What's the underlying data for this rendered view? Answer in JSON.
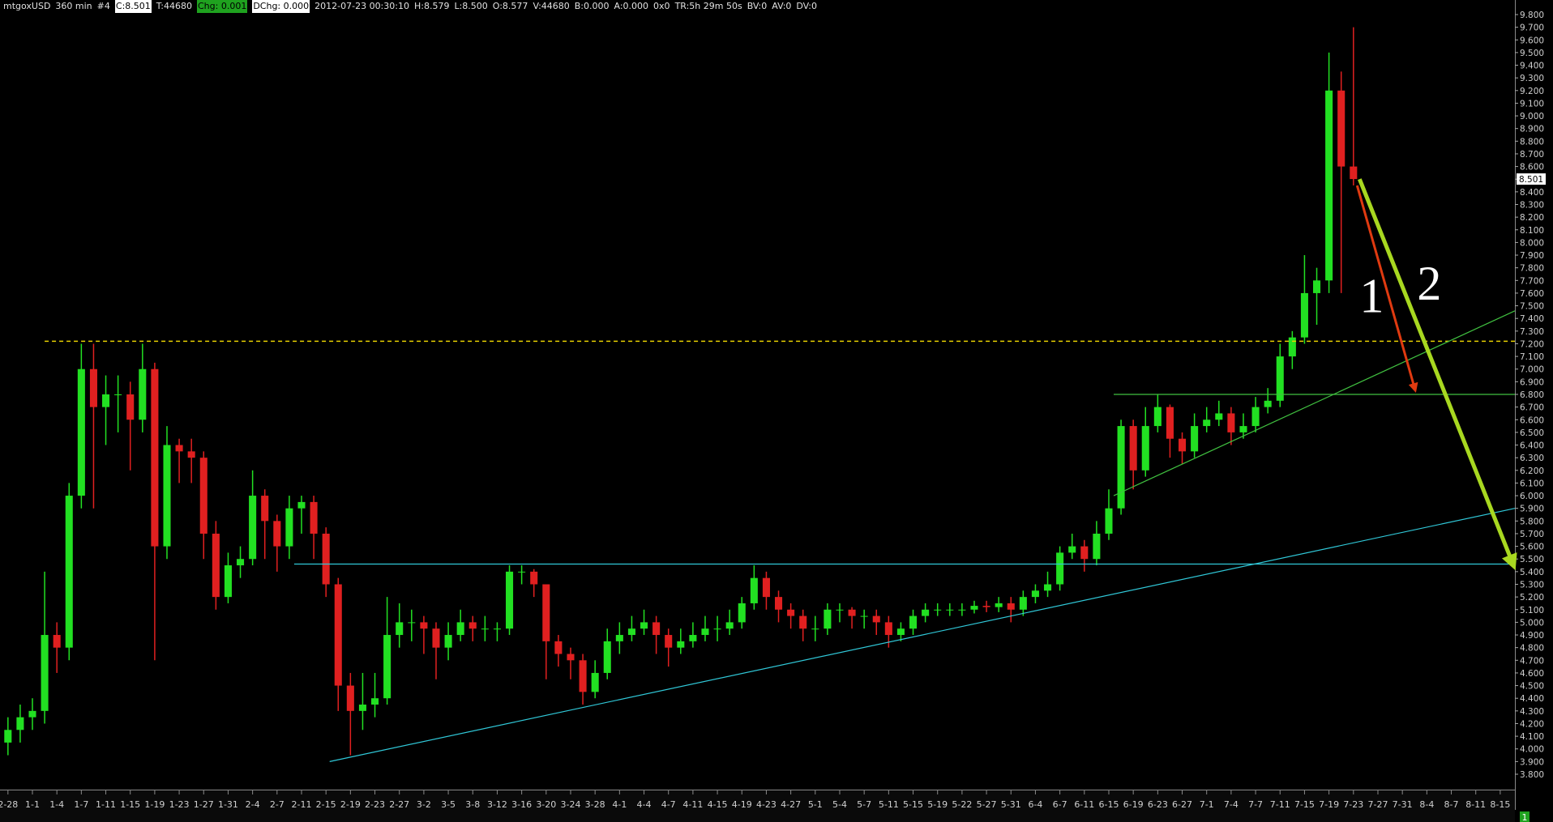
{
  "header": [
    "mtgoxUSD",
    "360 min",
    "#4",
    "C:8.501",
    "T:44680",
    "Chg: 0.001",
    "DChg: 0.000",
    "2012-07-23 00:30:10",
    "H:8.579",
    "L:8.500",
    "O:8.577",
    "V:44680",
    "B:0.000",
    "A:0.000",
    "0x0",
    "TR:5h 29m 50s",
    "BV:0",
    "AV:0",
    "DV:0"
  ],
  "chart_data": {
    "type": "candlestick",
    "up_color": "#22e022",
    "down_color": "#e02020",
    "categories": [
      "2-28",
      null,
      "1-1",
      null,
      "1-4",
      null,
      "1-7",
      null,
      "1-11",
      null,
      "1-15",
      null,
      "1-19",
      null,
      "1-23",
      null,
      "1-27",
      null,
      "1-31",
      null,
      "2-4",
      null,
      "2-7",
      null,
      "2-11",
      null,
      "2-15",
      null,
      "2-19",
      null,
      "2-23",
      null,
      "2-27",
      null,
      "3-2",
      null,
      "3-5",
      null,
      "3-8",
      null,
      "3-12",
      null,
      "3-16",
      null,
      "3-20",
      null,
      "3-24",
      null,
      "3-28",
      null,
      "4-1",
      null,
      "4-4",
      null,
      "4-7",
      null,
      "4-11",
      null,
      "4-15",
      null,
      "4-19",
      null,
      "4-23",
      null,
      "4-27",
      null,
      "5-1",
      null,
      "5-4",
      null,
      "5-7",
      null,
      "5-11",
      null,
      "5-15",
      null,
      "5-19",
      null,
      "5-22",
      null,
      "5-27",
      null,
      "5-31",
      null,
      "6-4",
      null,
      "6-7",
      null,
      "6-11",
      null,
      "6-15",
      null,
      "6-19",
      null,
      "6-23",
      null,
      "6-27",
      null,
      "7-1",
      null,
      "7-4",
      null,
      "7-7",
      null,
      "7-11",
      null,
      "7-15",
      null,
      "7-19",
      null,
      "7-23",
      null,
      "7-27",
      null,
      "7-31",
      null,
      "8-4",
      null,
      "8-7",
      null,
      "8-11",
      null,
      "8-15"
    ],
    "open": [
      4.05,
      4.15,
      4.25,
      4.3,
      4.9,
      4.8,
      6.0,
      7.0,
      6.7,
      6.8,
      6.8,
      6.6,
      7.0,
      5.6,
      6.4,
      6.35,
      6.3,
      5.7,
      5.2,
      5.45,
      5.5,
      6.0,
      5.8,
      5.6,
      5.9,
      5.95,
      5.7,
      5.3,
      4.5,
      4.3,
      4.35,
      4.4,
      4.9,
      5.0,
      5.0,
      4.95,
      4.8,
      4.9,
      5.0,
      4.95,
      4.95,
      4.95,
      5.4,
      5.4,
      5.3,
      4.85,
      4.75,
      4.7,
      4.45,
      4.6,
      4.85,
      4.9,
      4.95,
      5.0,
      4.9,
      4.8,
      4.85,
      4.9,
      4.95,
      4.95,
      5.0,
      5.15,
      5.35,
      5.2,
      5.1,
      5.05,
      4.95,
      4.95,
      5.1,
      5.1,
      5.05,
      5.05,
      5.0,
      4.9,
      4.95,
      5.05,
      5.1,
      5.1,
      5.1,
      5.1,
      5.13,
      5.12,
      5.15,
      5.1,
      5.2,
      5.25,
      5.3,
      5.55,
      5.6,
      5.5,
      5.7,
      5.9,
      6.55,
      6.2,
      6.55,
      6.7,
      6.45,
      6.35,
      6.55,
      6.6,
      6.65,
      6.5,
      6.55,
      6.7,
      6.75,
      7.1,
      7.25,
      7.6,
      7.7,
      9.2,
      8.6,
      null,
      null,
      null,
      null,
      null,
      null,
      null,
      null,
      null,
      null,
      null,
      null
    ],
    "high": [
      4.25,
      4.35,
      4.4,
      5.4,
      5.0,
      6.1,
      7.2,
      7.2,
      6.95,
      6.95,
      6.9,
      7.2,
      7.05,
      6.55,
      6.45,
      6.45,
      6.35,
      5.8,
      5.55,
      5.6,
      6.2,
      6.05,
      5.85,
      6.0,
      6.0,
      6.0,
      5.75,
      5.35,
      4.6,
      4.6,
      4.6,
      5.2,
      5.15,
      5.1,
      5.05,
      5.0,
      5.0,
      5.1,
      5.05,
      5.05,
      5.0,
      5.45,
      5.45,
      5.42,
      5.3,
      4.9,
      4.8,
      4.75,
      4.7,
      4.95,
      5.0,
      5.05,
      5.1,
      5.05,
      4.95,
      4.95,
      5.0,
      5.05,
      5.05,
      5.1,
      5.2,
      5.45,
      5.4,
      5.25,
      5.15,
      5.1,
      5.05,
      5.15,
      5.15,
      5.12,
      5.1,
      5.1,
      5.05,
      5.0,
      5.1,
      5.15,
      5.15,
      5.15,
      5.15,
      5.17,
      5.17,
      5.2,
      5.2,
      5.25,
      5.3,
      5.4,
      5.6,
      5.7,
      5.65,
      5.8,
      6.05,
      6.6,
      6.6,
      6.7,
      6.8,
      6.72,
      6.5,
      6.65,
      6.7,
      6.75,
      6.7,
      6.65,
      6.78,
      6.85,
      7.2,
      7.3,
      7.9,
      7.8,
      9.5,
      9.35,
      9.7,
      null,
      null,
      null,
      null,
      null,
      null,
      null,
      null,
      null,
      null,
      null,
      null
    ],
    "low": [
      3.95,
      4.05,
      4.15,
      4.2,
      4.6,
      4.7,
      5.9,
      5.9,
      6.4,
      6.5,
      6.2,
      6.5,
      4.7,
      5.5,
      6.1,
      6.1,
      5.5,
      5.1,
      5.15,
      5.35,
      5.45,
      5.5,
      5.4,
      5.5,
      5.7,
      5.5,
      5.2,
      4.3,
      3.95,
      4.15,
      4.25,
      4.35,
      4.8,
      4.85,
      4.75,
      4.55,
      4.7,
      4.85,
      4.85,
      4.85,
      4.85,
      4.9,
      5.3,
      5.2,
      4.55,
      4.65,
      4.55,
      4.35,
      4.4,
      4.55,
      4.75,
      4.85,
      4.9,
      4.75,
      4.65,
      4.75,
      4.8,
      4.85,
      4.85,
      4.9,
      4.95,
      5.1,
      5.1,
      5.0,
      4.95,
      4.85,
      4.85,
      4.9,
      5.0,
      4.95,
      4.95,
      4.9,
      4.8,
      4.85,
      4.9,
      5.0,
      5.05,
      5.05,
      5.05,
      5.07,
      5.08,
      5.08,
      5.0,
      5.05,
      5.15,
      5.2,
      5.25,
      5.5,
      5.4,
      5.45,
      5.65,
      5.85,
      6.05,
      6.15,
      6.5,
      6.3,
      6.25,
      6.3,
      6.5,
      6.55,
      6.4,
      6.45,
      6.5,
      6.65,
      6.7,
      7.0,
      7.2,
      7.35,
      7.6,
      7.6,
      8.45,
      null,
      null,
      null,
      null,
      null,
      null,
      null,
      null,
      null,
      null,
      null,
      null
    ],
    "close": [
      4.15,
      4.25,
      4.3,
      4.9,
      4.8,
      6.0,
      7.0,
      6.7,
      6.8,
      6.8,
      6.6,
      7.0,
      5.6,
      6.4,
      6.35,
      6.3,
      5.7,
      5.2,
      5.45,
      5.5,
      6.0,
      5.8,
      5.6,
      5.9,
      5.95,
      5.7,
      5.3,
      4.5,
      4.3,
      4.35,
      4.4,
      4.9,
      5.0,
      5.0,
      4.95,
      4.8,
      4.9,
      5.0,
      4.95,
      4.95,
      4.95,
      5.4,
      5.4,
      5.3,
      4.85,
      4.75,
      4.7,
      4.45,
      4.6,
      4.85,
      4.9,
      4.95,
      5.0,
      4.9,
      4.8,
      4.85,
      4.9,
      4.95,
      4.95,
      5.0,
      5.15,
      5.35,
      5.2,
      5.1,
      5.05,
      4.95,
      4.95,
      5.1,
      5.1,
      5.05,
      5.05,
      5.0,
      4.9,
      4.95,
      5.05,
      5.1,
      5.1,
      5.1,
      5.1,
      5.13,
      5.12,
      5.15,
      5.1,
      5.2,
      5.25,
      5.3,
      5.55,
      5.6,
      5.5,
      5.7,
      5.9,
      6.55,
      6.2,
      6.55,
      6.7,
      6.45,
      6.35,
      6.55,
      6.6,
      6.65,
      6.5,
      6.55,
      6.7,
      6.75,
      7.1,
      7.25,
      7.6,
      7.7,
      9.2,
      8.6,
      8.501,
      null,
      null,
      null,
      null,
      null,
      null,
      null,
      null,
      null,
      null,
      null,
      null
    ],
    "xlim": [
      -0.65,
      123.2
    ],
    "ylim": [
      3.8,
      9.8
    ],
    "yticks": [
      {
        "value": 3.8,
        "label": "3.800"
      },
      {
        "value": 3.9,
        "label": "3.900"
      },
      {
        "value": 4.0,
        "label": "4.000"
      },
      {
        "value": 4.1,
        "label": "4.100"
      },
      {
        "value": 4.2,
        "label": "4.200"
      },
      {
        "value": 4.3,
        "label": "4.300"
      },
      {
        "value": 4.4,
        "label": "4.400"
      },
      {
        "value": 4.5,
        "label": "4.500"
      },
      {
        "value": 4.6,
        "label": "4.600"
      },
      {
        "value": 4.7,
        "label": "4.700"
      },
      {
        "value": 4.8,
        "label": "4.800"
      },
      {
        "value": 4.9,
        "label": "4.900"
      },
      {
        "value": 5.0,
        "label": "5.000"
      },
      {
        "value": 5.1,
        "label": "5.100"
      },
      {
        "value": 5.2,
        "label": "5.200"
      },
      {
        "value": 5.3,
        "label": "5.300"
      },
      {
        "value": 5.4,
        "label": "5.400"
      },
      {
        "value": 5.5,
        "label": "5.500"
      },
      {
        "value": 5.6,
        "label": "5.600"
      },
      {
        "value": 5.7,
        "label": "5.700"
      },
      {
        "value": 5.8,
        "label": "5.800"
      },
      {
        "value": 5.9,
        "label": "5.900"
      },
      {
        "value": 6.0,
        "label": "6.000"
      },
      {
        "value": 6.1,
        "label": "6.100"
      },
      {
        "value": 6.2,
        "label": "6.200"
      },
      {
        "value": 6.3,
        "label": "6.300"
      },
      {
        "value": 6.4,
        "label": "6.400"
      },
      {
        "value": 6.5,
        "label": "6.500"
      },
      {
        "value": 6.6,
        "label": "6.600"
      },
      {
        "value": 6.7,
        "label": "6.700"
      },
      {
        "value": 6.8,
        "label": "6.800"
      },
      {
        "value": 6.9,
        "label": "6.900"
      },
      {
        "value": 7.0,
        "label": "7.000"
      },
      {
        "value": 7.1,
        "label": "7.100"
      },
      {
        "value": 7.2,
        "label": "7.200"
      },
      {
        "value": 7.3,
        "label": "7.300"
      },
      {
        "value": 7.4,
        "label": "7.400"
      },
      {
        "value": 7.5,
        "label": "7.500"
      },
      {
        "value": 7.6,
        "label": "7.600"
      },
      {
        "value": 7.7,
        "label": "7.700"
      },
      {
        "value": 7.8,
        "label": "7.800"
      },
      {
        "value": 7.9,
        "label": "7.900"
      },
      {
        "value": 8.0,
        "label": "8.000"
      },
      {
        "value": 8.1,
        "label": "8.100"
      },
      {
        "value": 8.2,
        "label": "8.200"
      },
      {
        "value": 8.3,
        "label": "8.300"
      },
      {
        "value": 8.4,
        "label": "8.400"
      },
      {
        "value": 8.5,
        "label": "8.500"
      },
      {
        "value": 8.6,
        "label": "8.600"
      },
      {
        "value": 8.7,
        "label": "8.700"
      },
      {
        "value": 8.8,
        "label": "8.800"
      },
      {
        "value": 8.9,
        "label": "8.900"
      },
      {
        "value": 9.0,
        "label": "9.000"
      },
      {
        "value": 9.1,
        "label": "9.100"
      },
      {
        "value": 9.2,
        "label": "9.200"
      },
      {
        "value": 9.3,
        "label": "9.300"
      },
      {
        "value": 9.4,
        "label": "9.400"
      },
      {
        "value": 9.5,
        "label": "9.500"
      },
      {
        "value": 9.6,
        "label": "9.600"
      },
      {
        "value": 9.7,
        "label": "9.700"
      },
      {
        "value": 9.8,
        "label": "9.800"
      }
    ],
    "last_price": {
      "value": 8.501,
      "label": "8.501"
    },
    "trendlines": [
      {
        "x": [
          3,
          123.2
        ],
        "y": [
          7.22,
          7.22
        ],
        "color": "#e8d000",
        "dash": true,
        "width": 1.5
      },
      {
        "x": [
          23.4,
          123.2
        ],
        "y": [
          5.46,
          5.46
        ],
        "color": "#30c8d8",
        "dash": false,
        "width": 1.2
      },
      {
        "x": [
          26.3,
          123.2
        ],
        "y": [
          3.9,
          5.9
        ],
        "color": "#30c8d8",
        "dash": false,
        "width": 1.2
      },
      {
        "x": [
          90.4,
          123.2
        ],
        "y": [
          6.8,
          6.8
        ],
        "color": "#40c040",
        "dash": false,
        "width": 1.2
      },
      {
        "x": [
          90.4,
          123.2
        ],
        "y": [
          6.0,
          7.46
        ],
        "color": "#40c040",
        "dash": false,
        "width": 1.2
      }
    ],
    "arrows": [
      {
        "x": [
          110.3,
          115
        ],
        "y": [
          8.45,
          6.85
        ],
        "color": "#e03a10",
        "width": 3
      },
      {
        "x": [
          110.5,
          123
        ],
        "y": [
          8.5,
          5.47
        ],
        "color": "#a8d820",
        "width": 5
      }
    ],
    "annotations": [
      {
        "text": "1",
        "x": 111.5,
        "y": 7.45
      },
      {
        "text": "2",
        "x": 116.2,
        "y": 7.55
      }
    ],
    "corner_label": "1"
  }
}
